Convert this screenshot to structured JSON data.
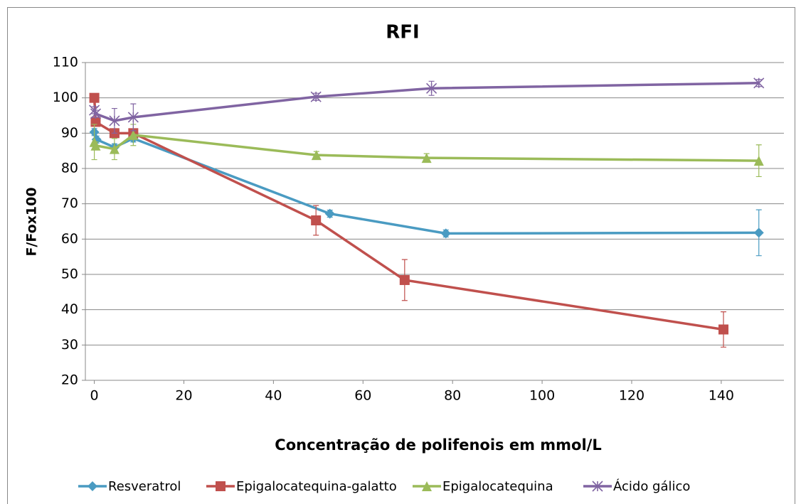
{
  "chart_data": {
    "type": "line",
    "title": "RFI",
    "x_label": "Concentração de polifenois em mmol/L",
    "y_label": "F/Fox100",
    "xlim": [
      -2,
      154
    ],
    "xticks": [
      0,
      20,
      40,
      60,
      80,
      100,
      120,
      140
    ],
    "ylim": [
      20,
      110
    ],
    "yticks": [
      20,
      30,
      40,
      50,
      60,
      70,
      80,
      90,
      100,
      110
    ],
    "grid": true,
    "legend": "bottom",
    "series": [
      {
        "name": "Resveratrol",
        "color": "#4a9bc2",
        "marker": "diamond",
        "x": [
          0,
          0.5,
          4.5,
          8.7,
          52.6,
          78.5,
          148.4
        ],
        "values": [
          90.3,
          88.2,
          86,
          88.5,
          67.2,
          61.6,
          61.8
        ],
        "errors": [
          1,
          1,
          1,
          1,
          1,
          1,
          6.5
        ]
      },
      {
        "name": "Epigalocatequina-galatto",
        "color": "#c0504d",
        "marker": "square",
        "x": [
          0,
          0.3,
          4.5,
          8.7,
          49.5,
          69.3,
          140.5
        ],
        "values": [
          100,
          93.2,
          90,
          90,
          65.3,
          48.4,
          34.4
        ],
        "errors": [
          1,
          1,
          1,
          1,
          4.2,
          5.8,
          5
        ]
      },
      {
        "name": "Epigalocatequina",
        "color": "#9bbb59",
        "marker": "triangle",
        "x": [
          0,
          0.3,
          4.5,
          8.7,
          49.6,
          74.2,
          148.4
        ],
        "values": [
          87.5,
          86.5,
          85.5,
          89.5,
          83.8,
          83,
          82.2
        ],
        "errors": [
          5,
          1,
          3,
          3,
          1,
          1.2,
          4.5
        ]
      },
      {
        "name": "Ácido gálico",
        "color": "#8064a2",
        "marker": "star",
        "x": [
          0,
          0.3,
          4.5,
          8.7,
          49.5,
          75.3,
          148.4
        ],
        "values": [
          96.5,
          95.5,
          93.5,
          94.5,
          100.3,
          102.7,
          104.2
        ],
        "errors": [
          1,
          1,
          3.5,
          3.8,
          1,
          2,
          1
        ]
      }
    ]
  }
}
